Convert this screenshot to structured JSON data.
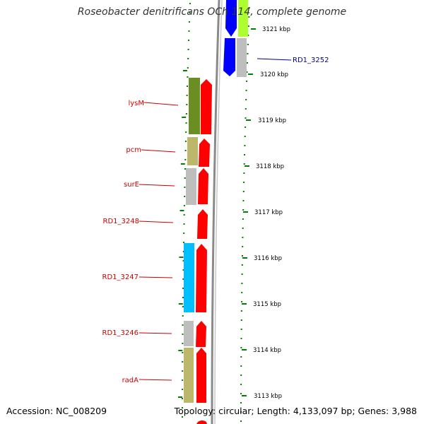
{
  "title": "Roseobacter denitrificans OCh 114, complete genome",
  "footer": {
    "accession": "Accession: NC_008209",
    "topology": "Topology: circular; Length: 4,133,097 bp; Genes: 3,988"
  },
  "colors": {
    "red_strand": "#ff0000",
    "green_gene": "#6b8e23",
    "khaki_gene": "#bdb76b",
    "gray_gene": "#bebebe",
    "cyan_gene": "#00bfff",
    "blue_gene": "#0000ff",
    "lime_gene": "#adff2f",
    "label_red": "#cc0000",
    "label_blue": "#000099",
    "tick_green": "#008000"
  },
  "kbp_ticks": [
    "3121 kbp",
    "3120 kbp",
    "3119 kbp",
    "3118 kbp",
    "3117 kbp",
    "3116 kbp",
    "3115 kbp",
    "3114 kbp",
    "3113 kbp"
  ],
  "gene_labels": [
    {
      "text": "lysM",
      "color": "red"
    },
    {
      "text": "pcm",
      "color": "red"
    },
    {
      "text": "surE",
      "color": "red"
    },
    {
      "text": "RD1_3248",
      "color": "red"
    },
    {
      "text": "RD1_3247",
      "color": "red"
    },
    {
      "text": "RD1_3246",
      "color": "red"
    },
    {
      "text": "radA",
      "color": "red"
    },
    {
      "text": "RD1_3252",
      "color": "blue"
    }
  ]
}
